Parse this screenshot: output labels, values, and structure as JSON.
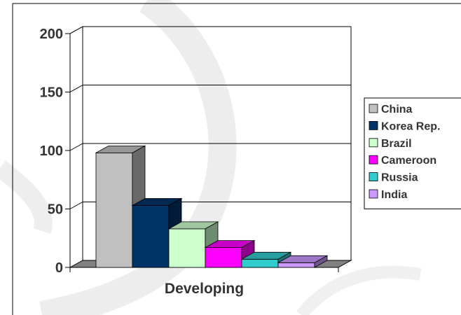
{
  "chart_data": {
    "type": "bar",
    "subtype": "3d-clustered-column",
    "categories": [
      "Developing"
    ],
    "series": [
      {
        "name": "China",
        "values": [
          98
        ],
        "color": "#c0c0c0"
      },
      {
        "name": "Korea Rep.",
        "values": [
          53
        ],
        "color": "#003366"
      },
      {
        "name": "Brazil",
        "values": [
          33
        ],
        "color": "#ccffcc"
      },
      {
        "name": "Cameroon",
        "values": [
          17
        ],
        "color": "#ff00ff"
      },
      {
        "name": "Russia",
        "values": [
          7
        ],
        "color": "#33cccc"
      },
      {
        "name": "India",
        "values": [
          4
        ],
        "color": "#cc99ff"
      }
    ],
    "yticks": [
      0,
      50,
      100,
      150,
      200
    ],
    "ylim": [
      0,
      200
    ],
    "grid": true,
    "legend_position": "right"
  }
}
